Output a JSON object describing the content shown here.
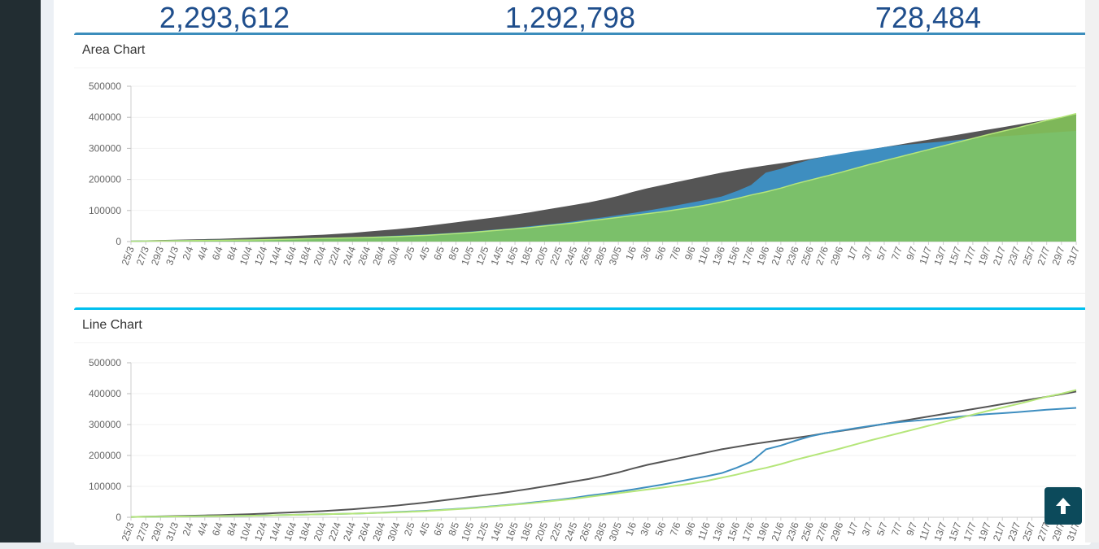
{
  "stats": {
    "total": "2,293,612",
    "second": "1,292,798",
    "third": "728,484"
  },
  "area_chart": {
    "title": "Area Chart"
  },
  "line_chart": {
    "title": "Line Chart"
  },
  "colors": {
    "series1": "#555555",
    "series2": "#3e8ec0",
    "series3": "#86c95a",
    "series3_line": "#b5e67a"
  },
  "icons": {
    "back_to_top": "arrow-up-icon"
  },
  "chart_data": [
    {
      "type": "area",
      "title": "Area Chart",
      "ylim": [
        0,
        500000
      ],
      "yticks": [
        "0",
        "100000",
        "200000",
        "300000",
        "400000",
        "500000"
      ],
      "categories": [
        "25/3",
        "27/3",
        "29/3",
        "31/3",
        "2/4",
        "4/4",
        "6/4",
        "8/4",
        "10/4",
        "12/4",
        "14/4",
        "16/4",
        "18/4",
        "20/4",
        "22/4",
        "24/4",
        "26/4",
        "28/4",
        "30/4",
        "2/5",
        "4/5",
        "6/5",
        "8/5",
        "10/5",
        "12/5",
        "14/5",
        "16/5",
        "18/5",
        "20/5",
        "22/5",
        "24/5",
        "26/5",
        "28/5",
        "30/5",
        "1/6",
        "3/6",
        "5/6",
        "7/6",
        "9/6",
        "11/6",
        "13/6",
        "15/6",
        "17/6",
        "19/6",
        "21/6",
        "23/6",
        "25/6",
        "27/6",
        "29/6",
        "1/7",
        "3/7",
        "5/7",
        "7/7",
        "9/7",
        "11/7",
        "13/7",
        "15/7",
        "17/7",
        "19/7",
        "21/7",
        "23/7",
        "25/7",
        "27/7",
        "29/7",
        "31/7"
      ],
      "series": [
        {
          "values": [
            1000,
            2000,
            3000,
            4000,
            5000,
            6000,
            7000,
            8500,
            10000,
            12000,
            14000,
            16000,
            18000,
            20000,
            23000,
            26000,
            30000,
            34000,
            38000,
            43000,
            48000,
            54000,
            60000,
            66000,
            72000,
            78000,
            85000,
            92000,
            100000,
            108000,
            116000,
            124000,
            134000,
            145000,
            158000,
            170000,
            180000,
            190000,
            200000,
            210000,
            220000,
            228000,
            236000,
            243000,
            250000,
            257000,
            264000,
            272000,
            279000,
            286000,
            294000,
            302000,
            310000,
            318000,
            326000,
            334000,
            342000,
            350000,
            358000,
            366000,
            374000,
            382000,
            390000,
            398000,
            407000
          ]
        },
        {
          "values": [
            1000,
            1500,
            2000,
            2500,
            3000,
            3500,
            4000,
            4500,
            5000,
            6000,
            7000,
            8000,
            9000,
            10000,
            11000,
            12000,
            13000,
            15000,
            17000,
            19000,
            21000,
            24000,
            27000,
            30000,
            34000,
            38000,
            42000,
            47000,
            52000,
            57000,
            63000,
            70000,
            76000,
            83000,
            90000,
            98000,
            106000,
            115000,
            124000,
            133000,
            143000,
            160000,
            180000,
            220000,
            232000,
            248000,
            262000,
            272000,
            280000,
            288000,
            295000,
            302000,
            308000,
            312000,
            316000,
            320000,
            325000,
            330000,
            334000,
            337000,
            340000,
            344000,
            348000,
            351000,
            354000
          ]
        },
        {
          "values": [
            1000,
            1500,
            2000,
            2500,
            3000,
            3500,
            4000,
            4500,
            5000,
            6000,
            7000,
            8000,
            9000,
            10000,
            11000,
            12000,
            13000,
            14500,
            16000,
            18000,
            20000,
            23000,
            26000,
            29000,
            33000,
            37000,
            41000,
            45000,
            50000,
            55000,
            60000,
            66000,
            72000,
            78000,
            84000,
            90000,
            96000,
            103000,
            110000,
            118000,
            128000,
            138000,
            150000,
            160000,
            172000,
            186000,
            198000,
            210000,
            222000,
            235000,
            248000,
            260000,
            272000,
            284000,
            296000,
            308000,
            320000,
            332000,
            344000,
            355000,
            366000,
            378000,
            390000,
            400000,
            412000
          ]
        }
      ]
    },
    {
      "type": "line",
      "title": "Line Chart",
      "ylim": [
        0,
        500000
      ],
      "yticks": [
        "0",
        "100000",
        "200000",
        "300000",
        "400000",
        "500000"
      ],
      "categories": [
        "25/3",
        "27/3",
        "29/3",
        "31/3",
        "2/4",
        "4/4",
        "6/4",
        "8/4",
        "10/4",
        "12/4",
        "14/4",
        "16/4",
        "18/4",
        "20/4",
        "22/4",
        "24/4",
        "26/4",
        "28/4",
        "30/4",
        "2/5",
        "4/5",
        "6/5",
        "8/5",
        "10/5",
        "12/5",
        "14/5",
        "16/5",
        "18/5",
        "20/5",
        "22/5",
        "24/5",
        "26/5",
        "28/5",
        "30/5",
        "1/6",
        "3/6",
        "5/6",
        "7/6",
        "9/6",
        "11/6",
        "13/6",
        "15/6",
        "17/6",
        "19/6",
        "21/6",
        "23/6",
        "25/6",
        "27/6",
        "29/6",
        "1/7",
        "3/7",
        "5/7",
        "7/7",
        "9/7",
        "11/7",
        "13/7",
        "15/7",
        "17/7",
        "19/7",
        "21/7",
        "23/7",
        "25/7",
        "27/7",
        "29/7",
        "31/7"
      ],
      "series": [
        {
          "values": [
            1000,
            2000,
            3000,
            4000,
            5000,
            6000,
            7000,
            8500,
            10000,
            12000,
            14000,
            16000,
            18000,
            20000,
            23000,
            26000,
            30000,
            34000,
            38000,
            43000,
            48000,
            54000,
            60000,
            66000,
            72000,
            78000,
            85000,
            92000,
            100000,
            108000,
            116000,
            124000,
            134000,
            145000,
            158000,
            170000,
            180000,
            190000,
            200000,
            210000,
            220000,
            228000,
            236000,
            243000,
            250000,
            257000,
            264000,
            272000,
            279000,
            286000,
            294000,
            302000,
            310000,
            318000,
            326000,
            334000,
            342000,
            350000,
            358000,
            366000,
            374000,
            382000,
            390000,
            398000,
            407000
          ]
        },
        {
          "values": [
            1000,
            1500,
            2000,
            2500,
            3000,
            3500,
            4000,
            4500,
            5000,
            6000,
            7000,
            8000,
            9000,
            10000,
            11000,
            12000,
            13000,
            15000,
            17000,
            19000,
            21000,
            24000,
            27000,
            30000,
            34000,
            38000,
            42000,
            47000,
            52000,
            57000,
            63000,
            70000,
            76000,
            83000,
            90000,
            98000,
            106000,
            115000,
            124000,
            133000,
            143000,
            160000,
            180000,
            220000,
            232000,
            248000,
            262000,
            272000,
            280000,
            288000,
            295000,
            302000,
            308000,
            312000,
            316000,
            320000,
            325000,
            330000,
            334000,
            337000,
            340000,
            344000,
            348000,
            351000,
            354000
          ]
        },
        {
          "values": [
            1000,
            1500,
            2000,
            2500,
            3000,
            3500,
            4000,
            4500,
            5000,
            6000,
            7000,
            8000,
            9000,
            10000,
            11000,
            12000,
            13000,
            14500,
            16000,
            18000,
            20000,
            23000,
            26000,
            29000,
            33000,
            37000,
            41000,
            45000,
            50000,
            55000,
            60000,
            66000,
            72000,
            78000,
            84000,
            90000,
            96000,
            103000,
            110000,
            118000,
            128000,
            138000,
            150000,
            160000,
            172000,
            186000,
            198000,
            210000,
            222000,
            235000,
            248000,
            260000,
            272000,
            284000,
            296000,
            308000,
            320000,
            332000,
            344000,
            355000,
            366000,
            378000,
            390000,
            400000,
            412000
          ]
        }
      ]
    }
  ]
}
